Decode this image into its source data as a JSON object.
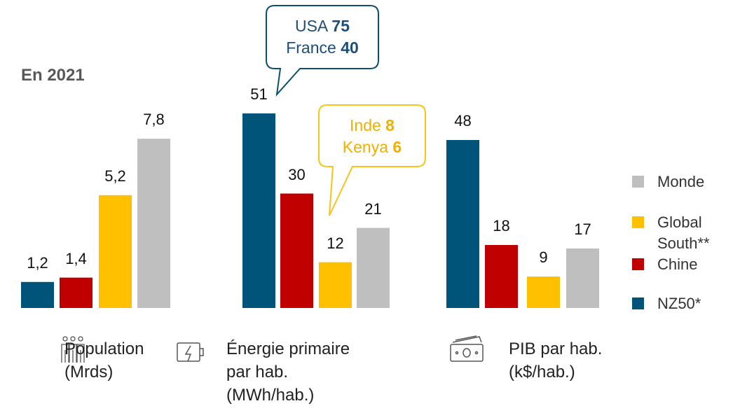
{
  "subtitle": "En 2021",
  "legend": [
    {
      "name": "NZ50*",
      "color": "#005479"
    },
    {
      "name": "Chine",
      "color": "#c00000"
    },
    {
      "name": "Global South**",
      "color": "#ffc000"
    },
    {
      "name": "Monde",
      "color": "#bfbfbf"
    }
  ],
  "chart_data": [
    {
      "type": "bar",
      "title": "Population (Mrds)",
      "values": [
        1.2,
        1.4,
        5.2,
        7.8
      ],
      "value_labels": [
        "1,2",
        "1,4",
        "5,2",
        "7,8"
      ]
    },
    {
      "type": "bar",
      "title": "Énergie primaire par hab. (MWh/hab.)",
      "values": [
        51,
        30,
        12,
        21
      ],
      "annotations": [
        {
          "color": "#0d4f6f",
          "lines": [
            {
              "label": "USA",
              "value": 75
            },
            {
              "label": "France",
              "value": 40
            }
          ]
        },
        {
          "color": "#f5c518",
          "lines": [
            {
              "label": "Inde",
              "value": 8
            },
            {
              "label": "Kenya",
              "value": 6
            }
          ]
        }
      ]
    },
    {
      "type": "bar",
      "title": "PIB par hab. (k$/hab.)",
      "values": [
        48,
        18,
        9,
        17
      ]
    }
  ]
}
